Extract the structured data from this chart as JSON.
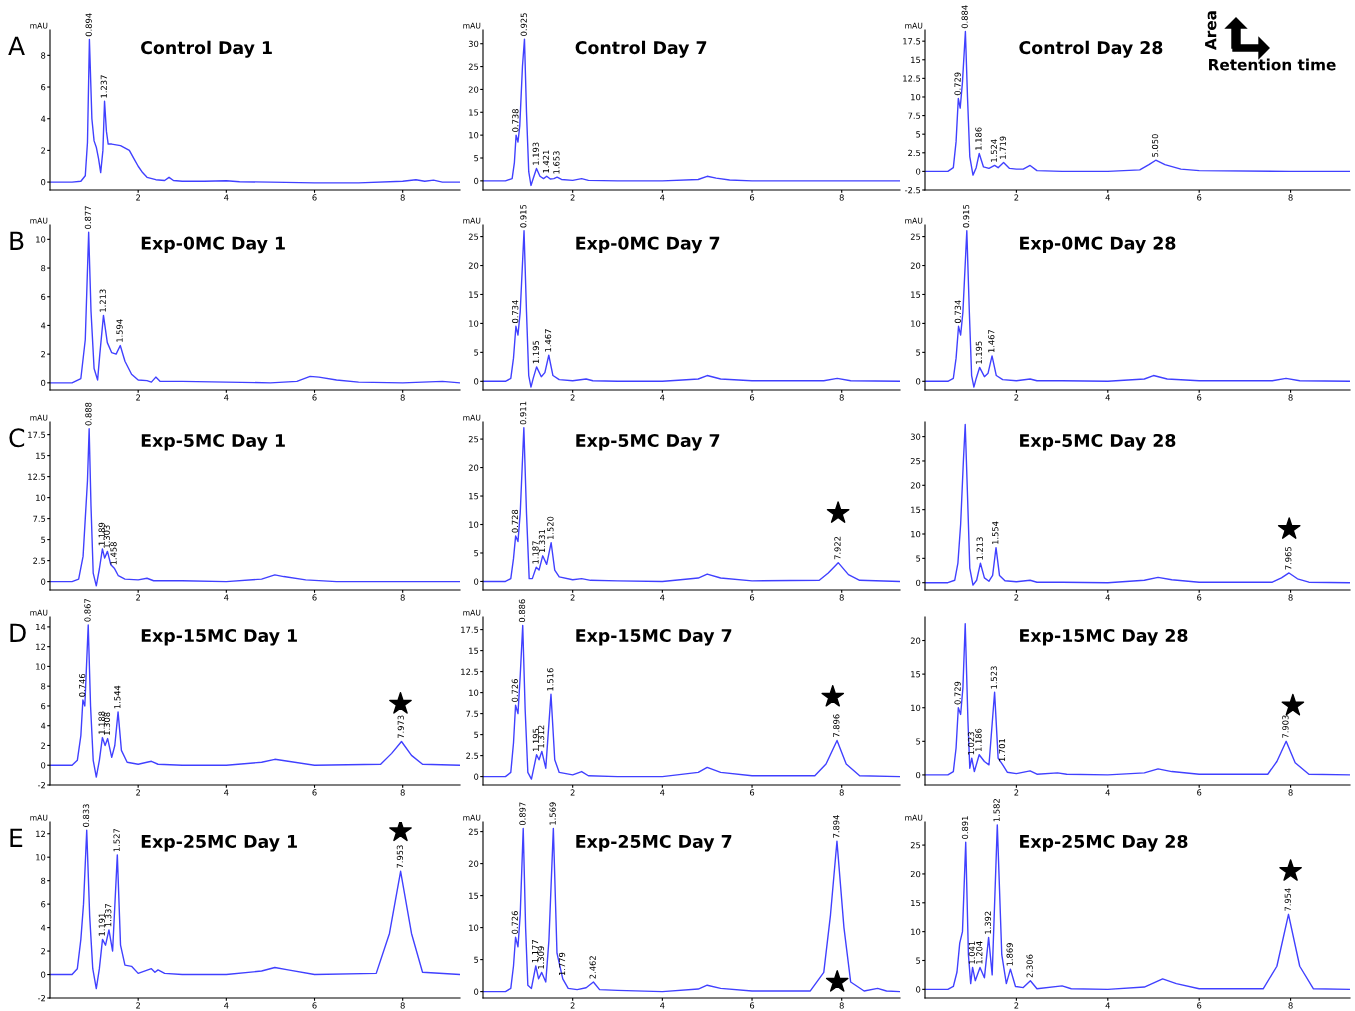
{
  "chart_data": [
    {
      "type": "line",
      "title": "Control Day 1",
      "ylabel": "mAU",
      "xlim": [
        0,
        9.3
      ],
      "ylim": [
        -0.5,
        9.6
      ],
      "xticks": [
        2,
        4,
        6,
        8
      ],
      "yticks": [
        0,
        2,
        4,
        6,
        8
      ],
      "series": [
        {
          "color": "#4040ff",
          "x": [
            0,
            0.5,
            0.7,
            0.8,
            0.85,
            0.894,
            0.95,
            1.0,
            1.05,
            1.1,
            1.15,
            1.2,
            1.237,
            1.28,
            1.32,
            1.4,
            1.6,
            1.8,
            1.9,
            2.0,
            2.1,
            2.2,
            2.4,
            2.6,
            2.7,
            2.8,
            3.0,
            3.5,
            4.0,
            4.3,
            5,
            6,
            7,
            8,
            8.3,
            8.5,
            8.7,
            8.9,
            9.3
          ],
          "values": [
            0,
            0,
            0.05,
            0.4,
            2.5,
            9.0,
            4,
            2.6,
            2.2,
            1.5,
            0.6,
            2,
            5.1,
            3.2,
            2.4,
            2.4,
            2.3,
            2.0,
            1.5,
            1.0,
            0.6,
            0.3,
            0.15,
            0.1,
            0.3,
            0.1,
            0.05,
            0.05,
            0.08,
            0.02,
            0,
            -0.05,
            -0.05,
            0.05,
            0.15,
            0.05,
            0.12,
            0,
            0
          ]
        }
      ],
      "annotations": [
        "A",
        {
          "text": "0.894",
          "x": 0.894,
          "y": 9.0
        },
        {
          "text": "1.237",
          "x": 1.237,
          "y": 5.1
        }
      ]
    },
    {
      "type": "line",
      "title": "Control Day 7",
      "ylabel": "mAU",
      "xlim": [
        0,
        9.3
      ],
      "ylim": [
        -2,
        33
      ],
      "xticks": [
        2,
        4,
        6,
        8
      ],
      "yticks": [
        0,
        5,
        10,
        15,
        20,
        25,
        30
      ],
      "series": [
        {
          "color": "#4040ff",
          "x": [
            0,
            0.5,
            0.65,
            0.7,
            0.738,
            0.78,
            0.82,
            0.88,
            0.925,
            0.97,
            1.02,
            1.07,
            1.12,
            1.193,
            1.27,
            1.35,
            1.421,
            1.5,
            1.58,
            1.653,
            1.75,
            2.0,
            2.2,
            2.35,
            3,
            4,
            4.8,
            5.0,
            5.2,
            5.5,
            6,
            8,
            9.3
          ],
          "values": [
            0,
            0,
            0.5,
            4,
            10,
            8.5,
            12,
            25,
            31,
            15,
            2,
            -1,
            0.5,
            2.7,
            1.0,
            0.5,
            1.0,
            0.4,
            0.5,
            0.8,
            0.3,
            0.1,
            0.5,
            0.1,
            0,
            0,
            0.3,
            1.0,
            0.6,
            0.2,
            0,
            0,
            0
          ]
        }
      ],
      "annotations": [
        {
          "text": "0.738",
          "x": 0.738,
          "y": 10
        },
        {
          "text": "0.925",
          "x": 0.925,
          "y": 31
        },
        {
          "text": "1.193",
          "x": 1.193,
          "y": 2.7
        },
        {
          "text": "1.421",
          "x": 1.421,
          "y": 1.0
        },
        {
          "text": "1.653",
          "x": 1.653,
          "y": 0.8
        }
      ]
    },
    {
      "type": "line",
      "title": "Control Day 28",
      "ylabel": "mAU",
      "xlim": [
        0,
        9.3
      ],
      "ylim": [
        -2.5,
        19
      ],
      "xticks": [
        2,
        4,
        6,
        8
      ],
      "yticks": [
        -2.5,
        0,
        2.5,
        5,
        7.5,
        10,
        12.5,
        15,
        17.5
      ],
      "series": [
        {
          "color": "#4040ff",
          "x": [
            0,
            0.5,
            0.62,
            0.68,
            0.729,
            0.77,
            0.82,
            0.884,
            0.93,
            0.98,
            1.05,
            1.12,
            1.186,
            1.28,
            1.4,
            1.524,
            1.6,
            1.719,
            1.85,
            2.0,
            2.15,
            2.3,
            2.45,
            3,
            4,
            4.7,
            4.9,
            5.05,
            5.25,
            5.6,
            6,
            8,
            9.3
          ],
          "values": [
            0,
            0,
            0.5,
            4,
            9.8,
            8.5,
            12,
            18.8,
            10,
            2,
            -0.5,
            0.5,
            2.4,
            0.6,
            0.4,
            0.8,
            0.5,
            1.2,
            0.4,
            0.3,
            0.3,
            0.8,
            0.1,
            0,
            0,
            0.2,
            0.9,
            1.5,
            0.9,
            0.3,
            0.1,
            0,
            0
          ]
        }
      ],
      "annotations": [
        "Area",
        "Retention time",
        {
          "text": "0.729",
          "x": 0.729,
          "y": 9.8
        },
        {
          "text": "0.884",
          "x": 0.884,
          "y": 18.8
        },
        {
          "text": "1.186",
          "x": 1.186,
          "y": 2.4
        },
        {
          "text": "1.524",
          "x": 1.524,
          "y": 0.8
        },
        {
          "text": "1.719",
          "x": 1.719,
          "y": 1.2
        },
        {
          "text": "5.050",
          "x": 5.05,
          "y": 1.5
        }
      ]
    },
    {
      "type": "line",
      "title": "Exp-0MC Day 1",
      "ylabel": "mAU",
      "xlim": [
        0,
        9.3
      ],
      "ylim": [
        -0.5,
        11
      ],
      "xticks": [
        2,
        4,
        6,
        8
      ],
      "yticks": [
        0,
        2,
        4,
        6,
        8,
        10
      ],
      "series": [
        {
          "color": "#4040ff",
          "x": [
            0,
            0.5,
            0.7,
            0.8,
            0.877,
            0.93,
            1.0,
            1.08,
            1.13,
            1.213,
            1.3,
            1.4,
            1.5,
            1.594,
            1.7,
            1.85,
            2.0,
            2.2,
            2.3,
            2.4,
            2.5,
            3,
            4,
            5,
            5.6,
            5.9,
            6.1,
            6.5,
            7,
            8,
            8.9,
            9.3
          ],
          "values": [
            0,
            0,
            0.3,
            3,
            10.5,
            5,
            1,
            0.2,
            2,
            4.7,
            2.8,
            2.1,
            2.0,
            2.6,
            1.5,
            0.6,
            0.2,
            0.15,
            0.05,
            0.4,
            0.1,
            0.1,
            0.05,
            0,
            0.1,
            0.45,
            0.4,
            0.2,
            0.05,
            0,
            0.1,
            0
          ]
        }
      ],
      "annotations": [
        "B",
        {
          "text": "0.877",
          "x": 0.877,
          "y": 10.5
        },
        {
          "text": "1.213",
          "x": 1.213,
          "y": 4.7
        },
        {
          "text": "1.594",
          "x": 1.594,
          "y": 2.6
        }
      ]
    },
    {
      "type": "line",
      "title": "Exp-0MC Day 7",
      "ylabel": "mAU",
      "xlim": [
        0,
        9.3
      ],
      "ylim": [
        -1.5,
        27
      ],
      "xticks": [
        2,
        4,
        6,
        8
      ],
      "yticks": [
        0,
        5,
        10,
        15,
        20,
        25
      ],
      "series": [
        {
          "color": "#4040ff",
          "x": [
            0,
            0.5,
            0.62,
            0.68,
            0.734,
            0.78,
            0.83,
            0.915,
            0.97,
            1.02,
            1.07,
            1.12,
            1.195,
            1.3,
            1.38,
            1.467,
            1.56,
            1.7,
            2.0,
            2.3,
            2.45,
            3,
            4,
            4.8,
            5.0,
            5.3,
            6,
            7.6,
            7.9,
            8.2,
            9.3
          ],
          "values": [
            0,
            0,
            0.5,
            4,
            9.5,
            8,
            12,
            26,
            12,
            1,
            -1,
            0.5,
            2.5,
            0.8,
            1.5,
            4.5,
            1,
            0.3,
            0.1,
            0.4,
            0.1,
            0,
            0,
            0.4,
            1.0,
            0.4,
            0.1,
            0.1,
            0.5,
            0.1,
            0
          ]
        }
      ],
      "annotations": [
        {
          "text": "0.734",
          "x": 0.734,
          "y": 9.5
        },
        {
          "text": "0.915",
          "x": 0.915,
          "y": 26
        },
        {
          "text": "1.195",
          "x": 1.195,
          "y": 2.5
        },
        {
          "text": "1.467",
          "x": 1.467,
          "y": 4.5
        }
      ]
    },
    {
      "type": "line",
      "title": "Exp-0MC Day 28",
      "ylabel": "mAU",
      "xlim": [
        0,
        9.3
      ],
      "ylim": [
        -1.5,
        27
      ],
      "xticks": [
        2,
        4,
        6,
        8
      ],
      "yticks": [
        0,
        5,
        10,
        15,
        20,
        25
      ],
      "series": [
        {
          "color": "#4040ff",
          "x": [
            0,
            0.5,
            0.62,
            0.68,
            0.734,
            0.78,
            0.83,
            0.915,
            0.97,
            1.02,
            1.07,
            1.12,
            1.195,
            1.3,
            1.38,
            1.467,
            1.56,
            1.7,
            2.0,
            2.3,
            2.45,
            3,
            4,
            4.8,
            5.0,
            5.3,
            6,
            7.6,
            7.9,
            8.2,
            9.3
          ],
          "values": [
            0,
            0,
            0.5,
            4,
            9.5,
            8,
            12,
            26,
            12,
            1,
            -1,
            0.5,
            2.4,
            0.8,
            1.4,
            4.4,
            1,
            0.3,
            0.1,
            0.4,
            0.1,
            0.1,
            0,
            0.4,
            1.0,
            0.4,
            0.1,
            0.1,
            0.5,
            0.1,
            0
          ]
        }
      ],
      "annotations": [
        {
          "text": "0.734",
          "x": 0.734,
          "y": 9.5
        },
        {
          "text": "0.915",
          "x": 0.915,
          "y": 26
        },
        {
          "text": "1.195",
          "x": 1.195,
          "y": 2.4
        },
        {
          "text": "1.467",
          "x": 1.467,
          "y": 4.4
        }
      ]
    },
    {
      "type": "line",
      "title": "Exp-5MC Day 1",
      "ylabel": "mAU",
      "xlim": [
        0,
        9.3
      ],
      "ylim": [
        -1,
        19
      ],
      "xticks": [
        2,
        4,
        6,
        8
      ],
      "yticks": [
        0,
        2.5,
        5,
        7.5,
        10,
        12.5,
        15,
        17.5
      ],
      "series": [
        {
          "color": "#4040ff",
          "x": [
            0,
            0.5,
            0.65,
            0.75,
            0.8,
            0.85,
            0.888,
            0.93,
            0.98,
            1.05,
            1.12,
            1.189,
            1.24,
            1.303,
            1.38,
            1.458,
            1.55,
            1.7,
            2.0,
            2.2,
            2.35,
            3,
            4,
            4.8,
            5.1,
            5.3,
            5.8,
            6.5,
            8,
            9.3
          ],
          "values": [
            0,
            0,
            0.3,
            3,
            7.5,
            12,
            18.2,
            9,
            1,
            -0.5,
            1.5,
            3.9,
            2.8,
            3.6,
            2,
            1.6,
            0.7,
            0.3,
            0.2,
            0.4,
            0.1,
            0.1,
            0,
            0.3,
            0.8,
            0.6,
            0.2,
            0,
            0,
            0
          ]
        }
      ],
      "annotations": [
        "C",
        {
          "text": "0.888",
          "x": 0.888,
          "y": 18.2
        },
        {
          "text": "1.189",
          "x": 1.189,
          "y": 3.9
        },
        {
          "text": "1.303",
          "x": 1.303,
          "y": 3.6
        },
        {
          "text": "1.458",
          "x": 1.458,
          "y": 1.6
        }
      ]
    },
    {
      "type": "line",
      "title": "Exp-5MC Day 7",
      "ylabel": "mAU",
      "xlim": [
        0,
        9.3
      ],
      "ylim": [
        -1.5,
        28
      ],
      "xticks": [
        2,
        4,
        6,
        8
      ],
      "yticks": [
        0,
        5,
        10,
        15,
        20,
        25
      ],
      "series": [
        {
          "color": "#4040ff",
          "x": [
            0,
            0.5,
            0.62,
            0.68,
            0.728,
            0.78,
            0.83,
            0.911,
            0.97,
            1.03,
            1.1,
            1.187,
            1.25,
            1.331,
            1.42,
            1.52,
            1.6,
            1.7,
            2.0,
            2.2,
            2.4,
            3,
            4,
            4.8,
            5.0,
            5.3,
            6,
            7.5,
            7.7,
            7.922,
            8.15,
            8.4,
            9.3
          ],
          "values": [
            0,
            0,
            0.5,
            4,
            8,
            7,
            12,
            27,
            12,
            0.5,
            0.5,
            2.5,
            2,
            4.5,
            3,
            6.8,
            2,
            0.8,
            0.3,
            0.5,
            0.2,
            0.1,
            0,
            0.6,
            1.3,
            0.6,
            0.1,
            0.2,
            1.5,
            3.3,
            1.2,
            0.2,
            0
          ]
        },
        {
          "type": "scatter",
          "marker": "star",
          "color": "#000000",
          "x": [
            7.92
          ],
          "values": [
            12
          ]
        }
      ],
      "annotations": [
        {
          "text": "0.728",
          "x": 0.728,
          "y": 8
        },
        {
          "text": "0.911",
          "x": 0.911,
          "y": 27
        },
        {
          "text": "1.187",
          "x": 1.187,
          "y": 2.5
        },
        {
          "text": "1.331",
          "x": 1.331,
          "y": 4.5
        },
        {
          "text": "1.520",
          "x": 1.52,
          "y": 6.8
        },
        {
          "text": "7.922",
          "x": 7.922,
          "y": 3.3
        }
      ]
    },
    {
      "type": "line",
      "title": "Exp-5MC Day 28",
      "ylabel": null,
      "xlim": [
        0,
        9.3
      ],
      "ylim": [
        -1.5,
        33
      ],
      "xticks": [
        2,
        4,
        6,
        8
      ],
      "yticks": [
        0,
        5,
        10,
        15,
        20,
        25,
        30
      ],
      "series": [
        {
          "color": "#4040ff",
          "x": [
            0,
            0.5,
            0.65,
            0.72,
            0.78,
            0.84,
            0.88,
            0.93,
            0.98,
            1.05,
            1.13,
            1.213,
            1.3,
            1.4,
            1.48,
            1.554,
            1.63,
            1.75,
            2.0,
            2.3,
            2.45,
            3,
            4,
            4.8,
            5.1,
            5.4,
            6,
            7.6,
            7.8,
            7.965,
            8.15,
            8.4,
            9.3
          ],
          "values": [
            0,
            0,
            0.5,
            4,
            12,
            25,
            32.5,
            18,
            3,
            -0.5,
            0.5,
            4,
            1,
            0.3,
            1.5,
            7.2,
            1.5,
            0.4,
            0.2,
            0.5,
            0.1,
            0.1,
            0,
            0.5,
            1.1,
            0.6,
            0.1,
            0.1,
            1,
            2,
            0.8,
            0.1,
            0
          ]
        },
        {
          "type": "scatter",
          "marker": "star",
          "color": "#000000",
          "x": [
            7.97
          ],
          "values": [
            11
          ]
        }
      ],
      "annotations": [
        {
          "text": "1.213",
          "x": 1.213,
          "y": 4
        },
        {
          "text": "1.554",
          "x": 1.554,
          "y": 7.2
        },
        {
          "text": "7.965",
          "x": 7.965,
          "y": 2
        }
      ]
    },
    {
      "type": "line",
      "title": "Exp-15MC Day 1",
      "ylabel": "mAU",
      "xlim": [
        0,
        9.3
      ],
      "ylim": [
        -2,
        15
      ],
      "xticks": [
        2,
        4,
        6,
        8
      ],
      "yticks": [
        -2,
        0,
        2,
        4,
        6,
        8,
        10,
        12,
        14
      ],
      "series": [
        {
          "color": "#4040ff",
          "x": [
            0,
            0.5,
            0.62,
            0.7,
            0.746,
            0.79,
            0.867,
            0.92,
            0.98,
            1.05,
            1.12,
            1.188,
            1.25,
            1.308,
            1.4,
            1.47,
            1.544,
            1.62,
            1.75,
            2.0,
            2.3,
            2.45,
            3,
            4,
            4.8,
            5.1,
            5.4,
            6,
            7.5,
            7.75,
            7.973,
            8.2,
            8.45,
            9.3
          ],
          "values": [
            0,
            0,
            0.5,
            3,
            6.6,
            6,
            14.2,
            6,
            0.5,
            -1.2,
            0.5,
            2.8,
            2,
            2.7,
            0.8,
            2,
            5.4,
            1.5,
            0.3,
            0.1,
            0.4,
            0.1,
            0,
            0,
            0.3,
            0.6,
            0.4,
            0,
            0.1,
            1.2,
            2.4,
            1.0,
            0.1,
            0
          ]
        },
        {
          "type": "scatter",
          "marker": "star",
          "color": "#000000",
          "x": [
            7.95
          ],
          "values": [
            6.2
          ]
        }
      ],
      "annotations": [
        "D",
        {
          "text": "0.746",
          "x": 0.746,
          "y": 6.6
        },
        {
          "text": "0.867",
          "x": 0.867,
          "y": 14.2
        },
        {
          "text": "1.188",
          "x": 1.188,
          "y": 2.8
        },
        {
          "text": "1.308",
          "x": 1.308,
          "y": 2.7
        },
        {
          "text": "1.544",
          "x": 1.544,
          "y": 5.4
        },
        {
          "text": "7.973",
          "x": 7.973,
          "y": 2.4
        }
      ]
    },
    {
      "type": "line",
      "title": "Exp-15MC Day 7",
      "ylabel": "mAU",
      "xlim": [
        0,
        9.3
      ],
      "ylim": [
        -1,
        19
      ],
      "xticks": [
        2,
        4,
        6,
        8
      ],
      "yticks": [
        0,
        2.5,
        5,
        7.5,
        10,
        12.5,
        15,
        17.5
      ],
      "series": [
        {
          "color": "#4040ff",
          "x": [
            0,
            0.5,
            0.62,
            0.68,
            0.726,
            0.78,
            0.83,
            0.886,
            0.94,
            1.0,
            1.08,
            1.195,
            1.25,
            1.312,
            1.4,
            1.516,
            1.6,
            1.7,
            2.0,
            2.2,
            2.35,
            3,
            4,
            4.8,
            5.0,
            5.3,
            6,
            7.4,
            7.65,
            7.896,
            8.1,
            8.4,
            9.3
          ],
          "values": [
            0,
            0,
            0.5,
            4,
            8.5,
            7.5,
            12,
            18,
            8,
            0.5,
            -0.3,
            2.6,
            2,
            3,
            1,
            9.8,
            2,
            0.5,
            0.2,
            0.6,
            0.1,
            0,
            0,
            0.5,
            1.1,
            0.5,
            0.1,
            0.1,
            1.5,
            4.3,
            1.5,
            0.1,
            0
          ]
        },
        {
          "type": "scatter",
          "marker": "star",
          "color": "#000000",
          "x": [
            7.8
          ],
          "values": [
            9.5
          ]
        }
      ],
      "annotations": [
        {
          "text": "0.726",
          "x": 0.726,
          "y": 8.5
        },
        {
          "text": "0.886",
          "x": 0.886,
          "y": 18
        },
        {
          "text": "1.195",
          "x": 1.195,
          "y": 2.6
        },
        {
          "text": "1.312",
          "x": 1.312,
          "y": 3
        },
        {
          "text": "1.516",
          "x": 1.516,
          "y": 9.8
        },
        {
          "text": "7.896",
          "x": 7.896,
          "y": 4.3
        }
      ]
    },
    {
      "type": "line",
      "title": "Exp-15MC Day 28",
      "ylabel": null,
      "xlim": [
        0,
        9.3
      ],
      "ylim": [
        -1.5,
        23.5
      ],
      "xticks": [
        2,
        4,
        6,
        8
      ],
      "yticks": [
        0,
        5,
        10,
        15,
        20
      ],
      "series": [
        {
          "color": "#4040ff",
          "x": [
            0,
            0.5,
            0.62,
            0.68,
            0.729,
            0.78,
            0.83,
            0.88,
            0.94,
            0.98,
            1.023,
            1.08,
            1.186,
            1.3,
            1.4,
            1.523,
            1.6,
            1.701,
            1.8,
            2.0,
            2.3,
            2.45,
            2.9,
            3.1,
            4,
            4.8,
            5.1,
            5.4,
            6,
            7.5,
            7.7,
            7.903,
            8.1,
            8.4,
            9.3
          ],
          "values": [
            0,
            0,
            0.5,
            4,
            10,
            9,
            13,
            22.5,
            8,
            1,
            2.5,
            0.5,
            3,
            2,
            1.5,
            12.3,
            2.5,
            1.5,
            0.4,
            0.2,
            0.6,
            0.1,
            0.3,
            0.1,
            0,
            0.3,
            0.9,
            0.5,
            0.1,
            0.1,
            2,
            5,
            1.8,
            0.1,
            0
          ]
        },
        {
          "type": "scatter",
          "marker": "star",
          "color": "#000000",
          "x": [
            8.05
          ],
          "values": [
            10.3
          ]
        }
      ],
      "annotations": [
        {
          "text": "0.729",
          "x": 0.729,
          "y": 10
        },
        {
          "text": "1.023",
          "x": 1.023,
          "y": 2.5
        },
        {
          "text": "1.186",
          "x": 1.186,
          "y": 3
        },
        {
          "text": "1.523",
          "x": 1.523,
          "y": 12.3
        },
        {
          "text": "1.701",
          "x": 1.701,
          "y": 1.5
        },
        {
          "text": "7.903",
          "x": 7.903,
          "y": 5
        }
      ]
    },
    {
      "type": "line",
      "title": "Exp-25MC Day 1",
      "ylabel": "mAU",
      "xlim": [
        0,
        9.3
      ],
      "ylim": [
        -2,
        13
      ],
      "xticks": [
        2,
        4,
        6,
        8
      ],
      "yticks": [
        -2,
        0,
        2,
        4,
        6,
        8,
        10,
        12
      ],
      "series": [
        {
          "color": "#4040ff",
          "x": [
            0,
            0.5,
            0.62,
            0.7,
            0.76,
            0.833,
            0.9,
            0.97,
            1.05,
            1.12,
            1.191,
            1.26,
            1.337,
            1.42,
            1.527,
            1.6,
            1.7,
            1.85,
            2.0,
            2.3,
            2.38,
            2.45,
            2.6,
            3,
            4,
            4.8,
            5.1,
            5.4,
            6,
            7.4,
            7.7,
            7.953,
            8.2,
            8.45,
            9.3
          ],
          "values": [
            0,
            0,
            0.5,
            3,
            6,
            12.3,
            5,
            0.5,
            -1.2,
            0.5,
            3,
            2.5,
            3.8,
            2,
            10.2,
            2.5,
            0.8,
            0.7,
            0.1,
            0.5,
            0.2,
            0.4,
            0.1,
            0,
            0,
            0.3,
            0.6,
            0.4,
            0,
            0.1,
            3.5,
            8.8,
            3.5,
            0.2,
            0
          ]
        },
        {
          "type": "scatter",
          "marker": "star",
          "color": "#000000",
          "x": [
            7.95
          ],
          "values": [
            12.2
          ]
        }
      ],
      "annotations": [
        "E",
        {
          "text": "0.833",
          "x": 0.833,
          "y": 12.3
        },
        {
          "text": "1.191",
          "x": 1.191,
          "y": 3
        },
        {
          "text": "1.337",
          "x": 1.337,
          "y": 3.8
        },
        {
          "text": "1.527",
          "x": 1.527,
          "y": 10.2
        },
        {
          "text": "7.953",
          "x": 7.953,
          "y": 8.8
        }
      ]
    },
    {
      "type": "line",
      "title": "Exp-25MC Day 7",
      "ylabel": "mAU",
      "xlim": [
        0,
        9.3
      ],
      "ylim": [
        -1,
        26.5
      ],
      "xticks": [
        2,
        4,
        6,
        8
      ],
      "yticks": [
        0,
        5,
        10,
        15,
        20,
        25
      ],
      "series": [
        {
          "color": "#4040ff",
          "x": [
            0,
            0.5,
            0.62,
            0.68,
            0.726,
            0.78,
            0.83,
            0.897,
            0.95,
            1.0,
            1.08,
            1.177,
            1.24,
            1.309,
            1.4,
            1.47,
            1.569,
            1.65,
            1.779,
            1.9,
            2.1,
            2.3,
            2.462,
            2.6,
            3,
            4,
            4.8,
            5.0,
            5.3,
            6,
            7.3,
            7.6,
            7.75,
            7.894,
            8.05,
            8.2,
            8.5,
            8.8,
            9.0,
            9.3
          ],
          "values": [
            0,
            0,
            0.5,
            4,
            8.5,
            7,
            12,
            25.5,
            10,
            1,
            0.5,
            4,
            2,
            3,
            1.5,
            8,
            25.5,
            6,
            2,
            0.5,
            0.3,
            0.6,
            1.5,
            0.3,
            0.2,
            0,
            0.4,
            1.0,
            0.5,
            0.1,
            0.1,
            3,
            12,
            23.5,
            10,
            1.5,
            0.1,
            0.5,
            0.1,
            0
          ]
        },
        {
          "type": "scatter",
          "marker": "star",
          "color": "#000000",
          "x": [
            7.9
          ],
          "values": [
            1.5
          ]
        }
      ],
      "annotations": [
        {
          "text": "0.726",
          "x": 0.726,
          "y": 8.5
        },
        {
          "text": "0.897",
          "x": 0.897,
          "y": 25.5
        },
        {
          "text": "1.177",
          "x": 1.177,
          "y": 4
        },
        {
          "text": "1.309",
          "x": 1.309,
          "y": 3
        },
        {
          "text": "1.569",
          "x": 1.569,
          "y": 25.5
        },
        {
          "text": "1.779",
          "x": 1.779,
          "y": 2
        },
        {
          "text": "2.462",
          "x": 2.462,
          "y": 1.5
        },
        {
          "text": "7.894",
          "x": 7.894,
          "y": 23.5
        }
      ]
    },
    {
      "type": "line",
      "title": "Exp-25MC Day 28",
      "ylabel": "mAU",
      "xlim": [
        0,
        9.3
      ],
      "ylim": [
        -1.5,
        29
      ],
      "xticks": [
        2,
        4,
        6,
        8
      ],
      "yticks": [
        0,
        5,
        10,
        15,
        20,
        25
      ],
      "series": [
        {
          "color": "#4040ff",
          "x": [
            0,
            0.5,
            0.62,
            0.7,
            0.76,
            0.82,
            0.891,
            0.95,
            1.0,
            1.041,
            1.1,
            1.204,
            1.3,
            1.392,
            1.47,
            1.582,
            1.68,
            1.78,
            1.869,
            1.98,
            2.15,
            2.306,
            2.45,
            3.0,
            3.2,
            4,
            4.8,
            5.2,
            5.5,
            6,
            7.4,
            7.7,
            7.954,
            8.2,
            8.5,
            9.3
          ],
          "values": [
            0,
            0,
            0.5,
            3,
            8,
            10,
            25.5,
            6,
            1,
            3.8,
            1.5,
            3.8,
            2,
            9,
            2.5,
            28.5,
            6,
            1,
            3.5,
            0.5,
            0.3,
            1.5,
            0.1,
            0.6,
            0.1,
            0,
            0.4,
            1.8,
            1.0,
            0.1,
            0.1,
            4,
            13,
            4,
            0.1,
            0
          ]
        },
        {
          "type": "scatter",
          "marker": "star",
          "color": "#000000",
          "x": [
            8.0
          ],
          "values": [
            20.5
          ]
        }
      ],
      "annotations": [
        {
          "text": "0.891",
          "x": 0.891,
          "y": 25.5
        },
        {
          "text": "1.041",
          "x": 1.041,
          "y": 3.8
        },
        {
          "text": "1.204",
          "x": 1.204,
          "y": 3.8
        },
        {
          "text": "1.392",
          "x": 1.392,
          "y": 9
        },
        {
          "text": "1.582",
          "x": 1.582,
          "y": 28.5
        },
        {
          "text": "1.869",
          "x": 1.869,
          "y": 3.5
        },
        {
          "text": "2.306",
          "x": 2.306,
          "y": 1.5
        },
        {
          "text": "7.954",
          "x": 7.954,
          "y": 13
        }
      ]
    }
  ]
}
